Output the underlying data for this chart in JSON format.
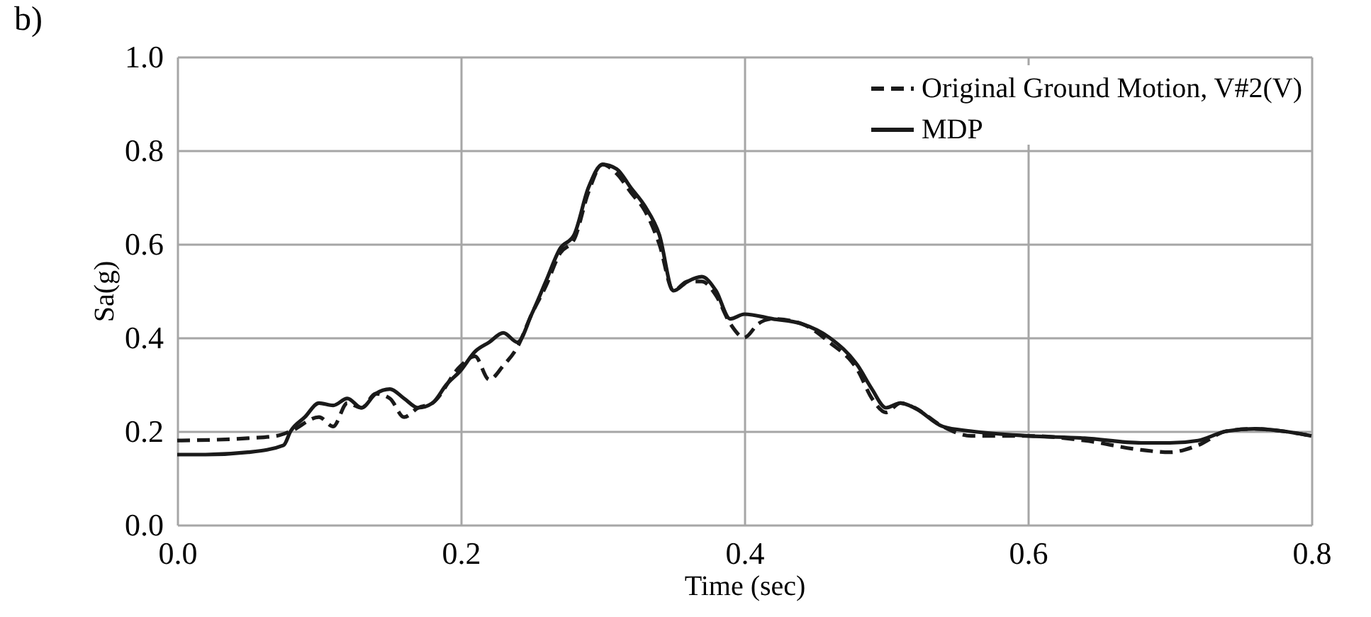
{
  "chart_data": {
    "type": "line",
    "xlabel": "Time (sec)",
    "ylabel": "Sa(g)",
    "annotations": [
      "b)"
    ],
    "xlim": [
      0,
      0.8
    ],
    "xticks": [
      {
        "value": 0,
        "label": "0.0"
      },
      0.2,
      0.4,
      0.6,
      0.8
    ],
    "ylim": [
      0,
      1
    ],
    "yticks": [
      {
        "value": 0,
        "label": "0.0"
      },
      0.2,
      0.4,
      0.6,
      0.8,
      {
        "value": 1,
        "label": "1.0"
      }
    ],
    "grid": true,
    "legend": "top right",
    "series": [
      {
        "name": "Original Ground Motion, V#2(V)",
        "color": "#1a1a1a",
        "line_style": "dashed",
        "x": [
          0,
          0.05,
          0.07,
          0.08,
          0.1,
          0.11,
          0.12,
          0.13,
          0.14,
          0.15,
          0.16,
          0.17,
          0.18,
          0.2,
          0.21,
          0.22,
          0.23,
          0.24,
          0.25,
          0.26,
          0.27,
          0.28,
          0.29,
          0.3,
          0.31,
          0.32,
          0.33,
          0.34,
          0.35,
          0.36,
          0.37,
          0.38,
          0.39,
          0.4,
          0.41,
          0.42,
          0.44,
          0.46,
          0.48,
          0.49,
          0.5,
          0.51,
          0.52,
          0.54,
          0.56,
          0.6,
          0.64,
          0.68,
          0.7,
          0.72,
          0.74,
          0.76,
          0.78,
          0.8
        ],
        "values": [
          0.18,
          0.185,
          0.19,
          0.2,
          0.23,
          0.21,
          0.26,
          0.25,
          0.28,
          0.27,
          0.23,
          0.25,
          0.26,
          0.34,
          0.36,
          0.31,
          0.34,
          0.38,
          0.45,
          0.51,
          0.58,
          0.61,
          0.71,
          0.77,
          0.75,
          0.71,
          0.67,
          0.6,
          0.5,
          0.52,
          0.52,
          0.49,
          0.43,
          0.4,
          0.43,
          0.44,
          0.43,
          0.39,
          0.33,
          0.27,
          0.24,
          0.26,
          0.25,
          0.21,
          0.19,
          0.19,
          0.18,
          0.16,
          0.155,
          0.17,
          0.2,
          0.205,
          0.2,
          0.19
        ]
      },
      {
        "name": "MDP",
        "color": "#1a1a1a",
        "line_style": "solid",
        "x": [
          0,
          0.02,
          0.05,
          0.075,
          0.08,
          0.09,
          0.1,
          0.11,
          0.12,
          0.13,
          0.14,
          0.15,
          0.16,
          0.17,
          0.18,
          0.19,
          0.2,
          0.21,
          0.22,
          0.23,
          0.24,
          0.25,
          0.26,
          0.27,
          0.28,
          0.29,
          0.3,
          0.31,
          0.32,
          0.33,
          0.34,
          0.35,
          0.36,
          0.37,
          0.38,
          0.39,
          0.4,
          0.42,
          0.44,
          0.46,
          0.48,
          0.49,
          0.5,
          0.51,
          0.52,
          0.54,
          0.56,
          0.6,
          0.64,
          0.68,
          0.7,
          0.72,
          0.74,
          0.76,
          0.78,
          0.8
        ],
        "values": [
          0.15,
          0.15,
          0.155,
          0.17,
          0.2,
          0.23,
          0.26,
          0.255,
          0.27,
          0.25,
          0.28,
          0.29,
          0.27,
          0.25,
          0.26,
          0.3,
          0.33,
          0.37,
          0.39,
          0.41,
          0.39,
          0.45,
          0.52,
          0.59,
          0.62,
          0.72,
          0.77,
          0.76,
          0.72,
          0.68,
          0.62,
          0.5,
          0.52,
          0.53,
          0.5,
          0.44,
          0.45,
          0.44,
          0.43,
          0.4,
          0.34,
          0.29,
          0.25,
          0.26,
          0.25,
          0.21,
          0.2,
          0.19,
          0.185,
          0.175,
          0.175,
          0.18,
          0.2,
          0.205,
          0.2,
          0.19
        ]
      }
    ]
  }
}
